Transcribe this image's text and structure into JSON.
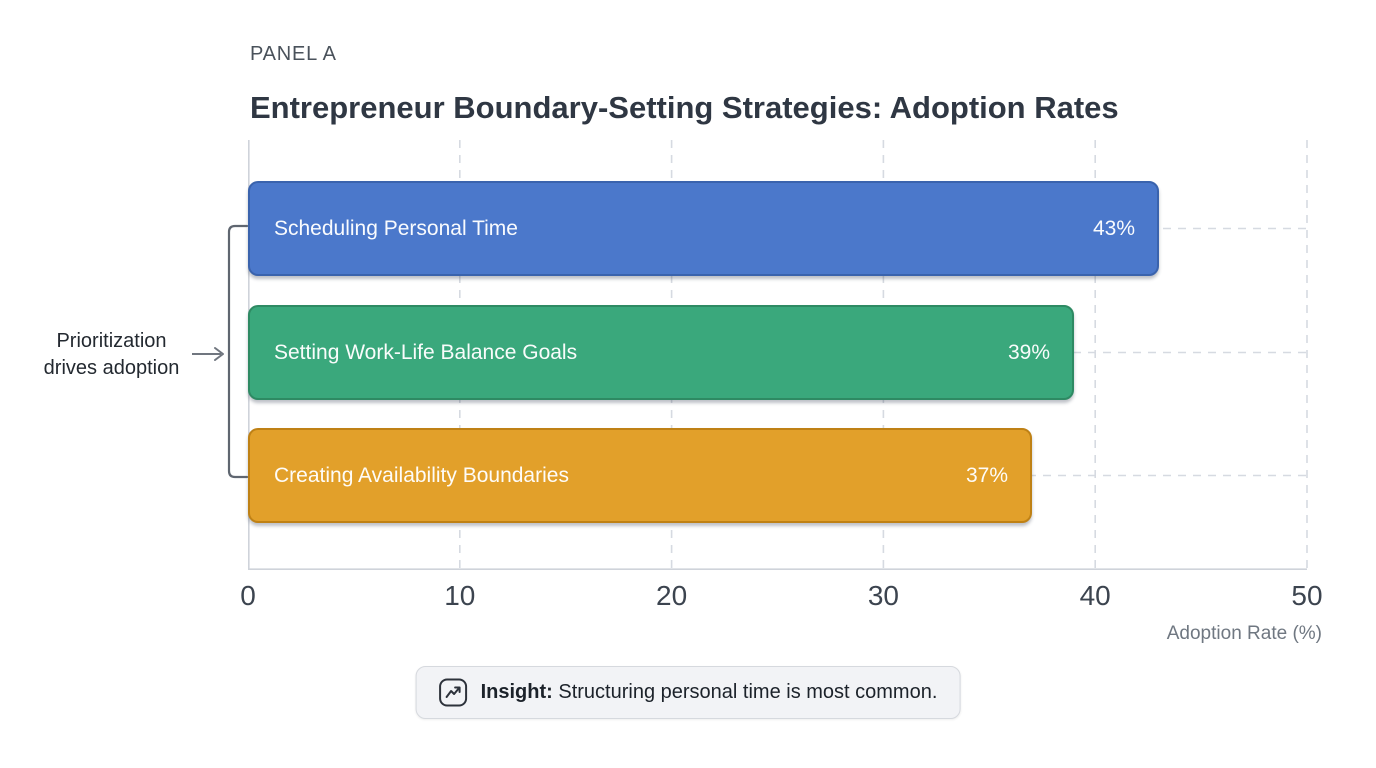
{
  "panel_label": "PANEL A",
  "title": "Entrepreneur Boundary-Setting Strategies: Adoption Rates",
  "chart_data": {
    "type": "bar",
    "orientation": "horizontal",
    "title": "Entrepreneur Boundary-Setting Strategies: Adoption Rates",
    "categories": [
      "Scheduling Personal Time",
      "Setting Work-Life Balance Goals",
      "Creating Availability Boundaries"
    ],
    "values": [
      43,
      39,
      37
    ],
    "value_labels": [
      "43%",
      "39%",
      "37%"
    ],
    "bar_fill_colors": [
      "#4b78cb",
      "#3aa87c",
      "#e2a02a"
    ],
    "bar_border_colors": [
      "#3a63ad",
      "#2e8a63",
      "#bf8115"
    ],
    "xlabel": "Adoption Rate (%)",
    "xlim": [
      0,
      50
    ],
    "x_ticks": [
      0,
      10,
      20,
      30,
      40,
      50
    ],
    "x_tick_labels": [
      "0",
      "10",
      "20",
      "30",
      "40",
      "50"
    ],
    "grid": "dashed",
    "gridline_color": "#d6dae1",
    "spine_color": "#cfd3da",
    "legend": "none"
  },
  "annotation": {
    "line1": "Prioritization",
    "line2": "drives adoption",
    "arrow_icon": "right-arrow-icon",
    "bracket_icon": "group-bracket",
    "color": "#5f6670"
  },
  "insight": {
    "icon": "trend-up-icon",
    "label": "Insight:",
    "text": " Structuring personal time is most common."
  }
}
